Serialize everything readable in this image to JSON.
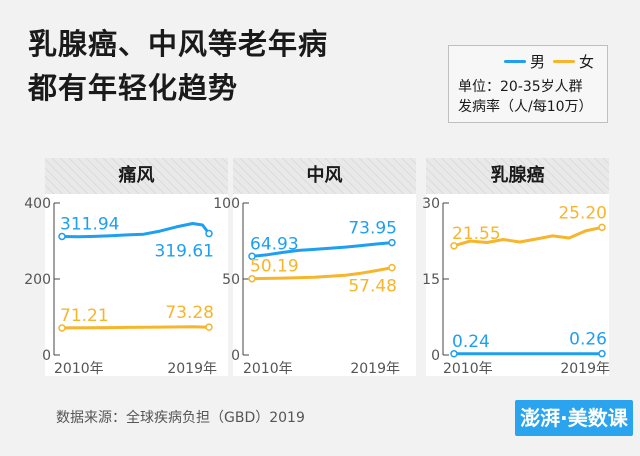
{
  "title": {
    "line1": "乳腺癌、中风等老年病",
    "line2": "都有年轻化趋势"
  },
  "legend": {
    "items": [
      {
        "label": "男",
        "color": "#1e9ff2"
      },
      {
        "label": "女",
        "color": "#f7b52c"
      }
    ],
    "note1": "单位：20-35岁人群",
    "note2": "发病率（人/每10万）"
  },
  "chart_data": [
    {
      "type": "line",
      "title": "痛风",
      "ylim": [
        0,
        400
      ],
      "yticks": [
        "0",
        "200",
        "400"
      ],
      "xlabels": [
        "2010年",
        "2019年"
      ],
      "x": [
        2010,
        2019
      ],
      "series": [
        {
          "name": "男",
          "color": "#1e9ff2",
          "values": [
            311.94,
            319.61
          ],
          "start_label": "311.94",
          "end_label": "319.61",
          "path": [
            [
              2010,
              311.94
            ],
            [
              2011,
              311
            ],
            [
              2012,
              312
            ],
            [
              2013,
              314
            ],
            [
              2014,
              316
            ],
            [
              2015,
              318
            ],
            [
              2016,
              326
            ],
            [
              2017,
              337
            ],
            [
              2018,
              346
            ],
            [
              2018.6,
              342
            ],
            [
              2019,
              319.61
            ]
          ]
        },
        {
          "name": "女",
          "color": "#f7b52c",
          "values": [
            71.21,
            73.28
          ],
          "start_label": "71.21",
          "end_label": "73.28",
          "path": [
            [
              2010,
              71.21
            ],
            [
              2013,
              72
            ],
            [
              2016,
              73.5
            ],
            [
              2018,
              74.5
            ],
            [
              2019,
              73.28
            ]
          ]
        }
      ]
    },
    {
      "type": "line",
      "title": "中风",
      "ylim": [
        0,
        100
      ],
      "yticks": [
        "0",
        "50",
        "100"
      ],
      "xlabels": [
        "2010年",
        "2019年"
      ],
      "x": [
        2010,
        2019
      ],
      "series": [
        {
          "name": "男",
          "color": "#1e9ff2",
          "values": [
            64.93,
            73.95
          ],
          "start_label": "64.93",
          "end_label": "73.95",
          "path": [
            [
              2010,
              64.93
            ],
            [
              2011,
              66
            ],
            [
              2012,
              67.5
            ],
            [
              2013,
              68.8
            ],
            [
              2014,
              69.5
            ],
            [
              2015,
              70.2
            ],
            [
              2016,
              71
            ],
            [
              2017,
              72
            ],
            [
              2018,
              73
            ],
            [
              2019,
              73.95
            ]
          ]
        },
        {
          "name": "女",
          "color": "#f7b52c",
          "values": [
            50.19,
            57.48
          ],
          "start_label": "50.19",
          "end_label": "57.48",
          "path": [
            [
              2010,
              50.19
            ],
            [
              2012,
              50.6
            ],
            [
              2014,
              51.2
            ],
            [
              2016,
              52.5
            ],
            [
              2017,
              53.8
            ],
            [
              2018,
              55.5
            ],
            [
              2019,
              57.48
            ]
          ]
        }
      ]
    },
    {
      "type": "line",
      "title": "乳腺癌",
      "ylim": [
        0,
        30
      ],
      "yticks": [
        "0",
        "15",
        "30"
      ],
      "xlabels": [
        "2010年",
        "2019年"
      ],
      "x": [
        2010,
        2019
      ],
      "series": [
        {
          "name": "男",
          "color": "#1e9ff2",
          "values": [
            0.24,
            0.26
          ],
          "start_label": "0.24",
          "end_label": "0.26",
          "path": [
            [
              2010,
              0.24
            ],
            [
              2019,
              0.26
            ]
          ]
        },
        {
          "name": "女",
          "color": "#f7b52c",
          "values": [
            21.55,
            25.2
          ],
          "start_label": "21.55",
          "end_label": "25.20",
          "path": [
            [
              2010,
              21.55
            ],
            [
              2011,
              22.5
            ],
            [
              2012,
              22.2
            ],
            [
              2013,
              22.8
            ],
            [
              2014,
              22.3
            ],
            [
              2015,
              22.9
            ],
            [
              2016,
              23.5
            ],
            [
              2017,
              23.1
            ],
            [
              2018,
              24.5
            ],
            [
              2019,
              25.2
            ]
          ]
        }
      ]
    }
  ],
  "source": "数据来源：全球疾病负担（GBD）2019",
  "logo": "澎湃·美数课"
}
